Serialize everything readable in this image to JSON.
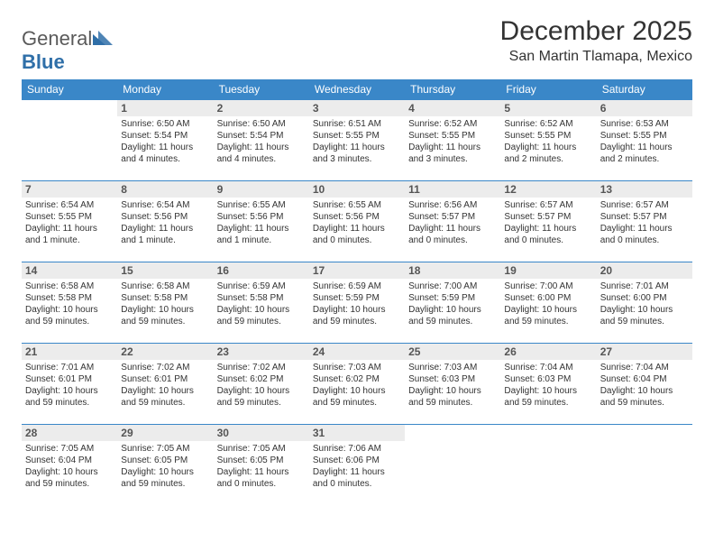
{
  "brand": {
    "part1": "General",
    "part2": "Blue"
  },
  "title": "December 2025",
  "location": "San Martin Tlamapa, Mexico",
  "colors": {
    "header_bg": "#3a87c8",
    "header_text": "#ffffff",
    "daynum_bg": "#ececec",
    "row_border": "#3a87c8",
    "brand_gray": "#5a5a5a",
    "brand_blue": "#2f6fa8"
  },
  "weekdays": [
    "Sunday",
    "Monday",
    "Tuesday",
    "Wednesday",
    "Thursday",
    "Friday",
    "Saturday"
  ],
  "weeks": [
    [
      {
        "empty": true
      },
      {
        "day": "1",
        "sunrise": "Sunrise: 6:50 AM",
        "sunset": "Sunset: 5:54 PM",
        "daylight": "Daylight: 11 hours and 4 minutes."
      },
      {
        "day": "2",
        "sunrise": "Sunrise: 6:50 AM",
        "sunset": "Sunset: 5:54 PM",
        "daylight": "Daylight: 11 hours and 4 minutes."
      },
      {
        "day": "3",
        "sunrise": "Sunrise: 6:51 AM",
        "sunset": "Sunset: 5:55 PM",
        "daylight": "Daylight: 11 hours and 3 minutes."
      },
      {
        "day": "4",
        "sunrise": "Sunrise: 6:52 AM",
        "sunset": "Sunset: 5:55 PM",
        "daylight": "Daylight: 11 hours and 3 minutes."
      },
      {
        "day": "5",
        "sunrise": "Sunrise: 6:52 AM",
        "sunset": "Sunset: 5:55 PM",
        "daylight": "Daylight: 11 hours and 2 minutes."
      },
      {
        "day": "6",
        "sunrise": "Sunrise: 6:53 AM",
        "sunset": "Sunset: 5:55 PM",
        "daylight": "Daylight: 11 hours and 2 minutes."
      }
    ],
    [
      {
        "day": "7",
        "sunrise": "Sunrise: 6:54 AM",
        "sunset": "Sunset: 5:55 PM",
        "daylight": "Daylight: 11 hours and 1 minute."
      },
      {
        "day": "8",
        "sunrise": "Sunrise: 6:54 AM",
        "sunset": "Sunset: 5:56 PM",
        "daylight": "Daylight: 11 hours and 1 minute."
      },
      {
        "day": "9",
        "sunrise": "Sunrise: 6:55 AM",
        "sunset": "Sunset: 5:56 PM",
        "daylight": "Daylight: 11 hours and 1 minute."
      },
      {
        "day": "10",
        "sunrise": "Sunrise: 6:55 AM",
        "sunset": "Sunset: 5:56 PM",
        "daylight": "Daylight: 11 hours and 0 minutes."
      },
      {
        "day": "11",
        "sunrise": "Sunrise: 6:56 AM",
        "sunset": "Sunset: 5:57 PM",
        "daylight": "Daylight: 11 hours and 0 minutes."
      },
      {
        "day": "12",
        "sunrise": "Sunrise: 6:57 AM",
        "sunset": "Sunset: 5:57 PM",
        "daylight": "Daylight: 11 hours and 0 minutes."
      },
      {
        "day": "13",
        "sunrise": "Sunrise: 6:57 AM",
        "sunset": "Sunset: 5:57 PM",
        "daylight": "Daylight: 11 hours and 0 minutes."
      }
    ],
    [
      {
        "day": "14",
        "sunrise": "Sunrise: 6:58 AM",
        "sunset": "Sunset: 5:58 PM",
        "daylight": "Daylight: 10 hours and 59 minutes."
      },
      {
        "day": "15",
        "sunrise": "Sunrise: 6:58 AM",
        "sunset": "Sunset: 5:58 PM",
        "daylight": "Daylight: 10 hours and 59 minutes."
      },
      {
        "day": "16",
        "sunrise": "Sunrise: 6:59 AM",
        "sunset": "Sunset: 5:58 PM",
        "daylight": "Daylight: 10 hours and 59 minutes."
      },
      {
        "day": "17",
        "sunrise": "Sunrise: 6:59 AM",
        "sunset": "Sunset: 5:59 PM",
        "daylight": "Daylight: 10 hours and 59 minutes."
      },
      {
        "day": "18",
        "sunrise": "Sunrise: 7:00 AM",
        "sunset": "Sunset: 5:59 PM",
        "daylight": "Daylight: 10 hours and 59 minutes."
      },
      {
        "day": "19",
        "sunrise": "Sunrise: 7:00 AM",
        "sunset": "Sunset: 6:00 PM",
        "daylight": "Daylight: 10 hours and 59 minutes."
      },
      {
        "day": "20",
        "sunrise": "Sunrise: 7:01 AM",
        "sunset": "Sunset: 6:00 PM",
        "daylight": "Daylight: 10 hours and 59 minutes."
      }
    ],
    [
      {
        "day": "21",
        "sunrise": "Sunrise: 7:01 AM",
        "sunset": "Sunset: 6:01 PM",
        "daylight": "Daylight: 10 hours and 59 minutes."
      },
      {
        "day": "22",
        "sunrise": "Sunrise: 7:02 AM",
        "sunset": "Sunset: 6:01 PM",
        "daylight": "Daylight: 10 hours and 59 minutes."
      },
      {
        "day": "23",
        "sunrise": "Sunrise: 7:02 AM",
        "sunset": "Sunset: 6:02 PM",
        "daylight": "Daylight: 10 hours and 59 minutes."
      },
      {
        "day": "24",
        "sunrise": "Sunrise: 7:03 AM",
        "sunset": "Sunset: 6:02 PM",
        "daylight": "Daylight: 10 hours and 59 minutes."
      },
      {
        "day": "25",
        "sunrise": "Sunrise: 7:03 AM",
        "sunset": "Sunset: 6:03 PM",
        "daylight": "Daylight: 10 hours and 59 minutes."
      },
      {
        "day": "26",
        "sunrise": "Sunrise: 7:04 AM",
        "sunset": "Sunset: 6:03 PM",
        "daylight": "Daylight: 10 hours and 59 minutes."
      },
      {
        "day": "27",
        "sunrise": "Sunrise: 7:04 AM",
        "sunset": "Sunset: 6:04 PM",
        "daylight": "Daylight: 10 hours and 59 minutes."
      }
    ],
    [
      {
        "day": "28",
        "sunrise": "Sunrise: 7:05 AM",
        "sunset": "Sunset: 6:04 PM",
        "daylight": "Daylight: 10 hours and 59 minutes."
      },
      {
        "day": "29",
        "sunrise": "Sunrise: 7:05 AM",
        "sunset": "Sunset: 6:05 PM",
        "daylight": "Daylight: 10 hours and 59 minutes."
      },
      {
        "day": "30",
        "sunrise": "Sunrise: 7:05 AM",
        "sunset": "Sunset: 6:05 PM",
        "daylight": "Daylight: 11 hours and 0 minutes."
      },
      {
        "day": "31",
        "sunrise": "Sunrise: 7:06 AM",
        "sunset": "Sunset: 6:06 PM",
        "daylight": "Daylight: 11 hours and 0 minutes."
      },
      {
        "empty": true
      },
      {
        "empty": true
      },
      {
        "empty": true
      }
    ]
  ]
}
